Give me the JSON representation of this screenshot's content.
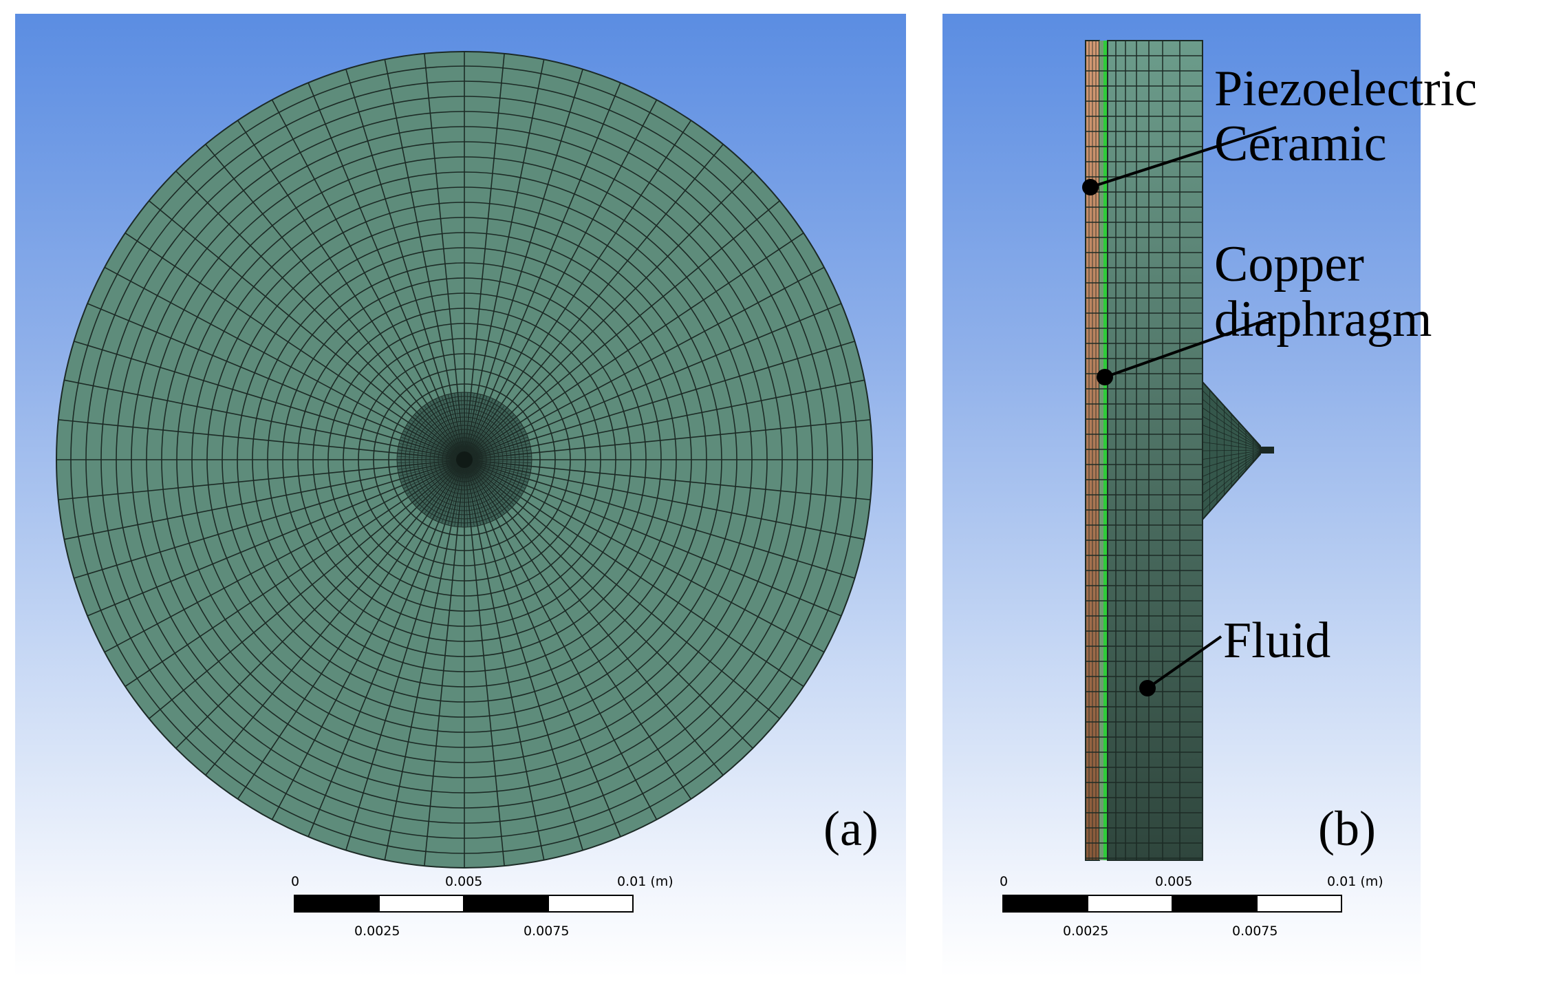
{
  "panel_a": {
    "label": "(a)",
    "scale": {
      "ticks_top": [
        "0",
        "0.005",
        "0.01 (m)"
      ],
      "ticks_bottom": [
        "0.0025",
        "0.0075"
      ]
    }
  },
  "panel_b": {
    "label": "(b)",
    "callouts": [
      {
        "id": "piezo",
        "text": "Piezoelectric\nCeramic"
      },
      {
        "id": "copper",
        "text": "Copper\ndiaphragm"
      },
      {
        "id": "fluid",
        "text": "Fluid"
      }
    ],
    "scale": {
      "ticks_top": [
        "0",
        "0.005",
        "0.01 (m)"
      ],
      "ticks_bottom": [
        "0.0025",
        "0.0075"
      ]
    }
  },
  "colors": {
    "mesh_fill": "#5e8c7b",
    "mesh_line": "#1c2a25",
    "piezo": "#c48a66",
    "copper": "#2fcc3a",
    "background_top": "#5b8de2",
    "background_bottom": "#ffffff"
  }
}
